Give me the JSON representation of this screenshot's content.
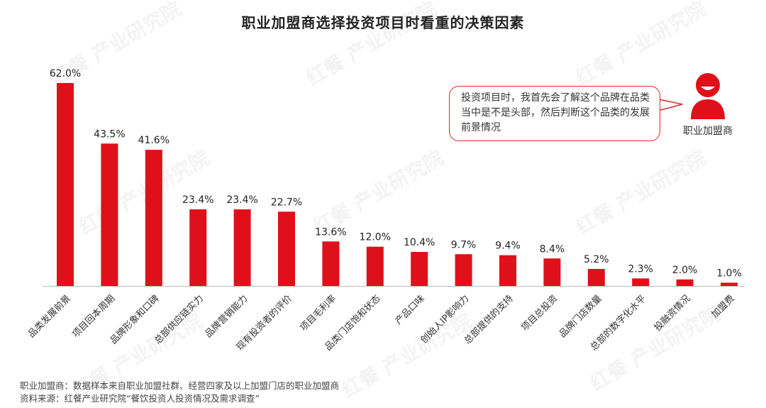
{
  "title": "职业加盟商选择投资项目时看重的决策因素",
  "watermark": "红餐 产业研究院",
  "callout": {
    "text": "投资项目时，我首先会了解这个品牌在品类当中是不是头部，然后判断这个品类的发展前景情况",
    "person_label": "职业加盟商",
    "icon": "person-icon"
  },
  "footnotes": [
    "职业加盟商：数据样本来自职业加盟社群、经营四家及以上加盟门店的职业加盟商",
    "资料来源：红餐产业研究院“餐饮投资人投资情况及需求调查”"
  ],
  "colors": {
    "bar": "#e0101a",
    "accent": "#e0262b",
    "axis": "#bbbbbb"
  },
  "chart_data": {
    "type": "bar",
    "categories": [
      "品类发展前景",
      "项目回本周期",
      "品牌形象和口碑",
      "总部供应链实力",
      "品牌营销能力",
      "现有投资者的评价",
      "项目毛利率",
      "品类门店饱和状态",
      "产品口味",
      "创始人IP影响力",
      "总部提供的支持",
      "项目总投资",
      "品牌门店数量",
      "总部的数字化水平",
      "投融资情况",
      "加盟费"
    ],
    "values": [
      62.0,
      43.5,
      41.6,
      23.4,
      23.4,
      22.7,
      13.6,
      12.0,
      10.4,
      9.7,
      9.4,
      8.4,
      5.2,
      2.3,
      2.0,
      1.0
    ],
    "value_labels": [
      "62.0%",
      "43.5%",
      "41.6%",
      "23.4%",
      "23.4%",
      "22.7%",
      "13.6%",
      "12.0%",
      "10.4%",
      "9.7%",
      "9.4%",
      "8.4%",
      "5.2%",
      "2.3%",
      "2.0%",
      "1.0%"
    ],
    "unit": "%",
    "ylim": [
      0,
      62
    ],
    "grid": false,
    "legend": "none"
  }
}
